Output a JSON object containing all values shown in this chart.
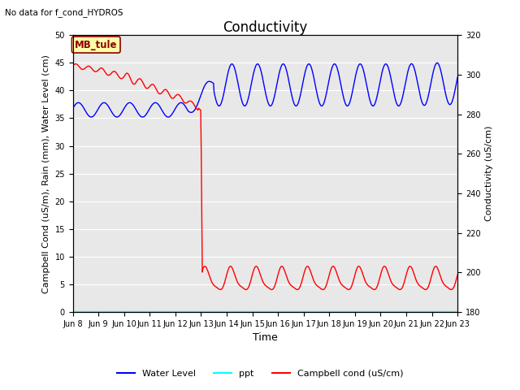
{
  "title": "Conductivity",
  "top_left_text": "No data for f_cond_HYDROS",
  "ylabel_left": "Campbell Cond (uS/m), Rain (mm), Water Level (cm)",
  "ylabel_right": "Conductivity (uS/cm)",
  "xlabel": "Time",
  "ylim_left": [
    0,
    50
  ],
  "ylim_right": [
    180,
    320
  ],
  "annotation_box": "MB_tule",
  "bg_color": "#e8e8e8",
  "x_ticks_labels": [
    "Jun 8",
    "Jun 9",
    "Jun 10",
    "Jun 11",
    "Jun 12",
    "Jun 13",
    "Jun 14",
    "Jun 15",
    "Jun 16",
    "Jun 17",
    "Jun 18",
    "Jun 19",
    "Jun 20",
    "Jun 21",
    "Jun 22",
    "Jun 23"
  ],
  "yticks_left": [
    0,
    5,
    10,
    15,
    20,
    25,
    30,
    35,
    40,
    45,
    50
  ],
  "yticks_right": [
    180,
    200,
    220,
    240,
    260,
    280,
    300,
    320
  ],
  "legend_labels": [
    "Water Level",
    "ppt",
    "Campbell cond (uS/cm)"
  ],
  "legend_colors": [
    "blue",
    "cyan",
    "red"
  ],
  "title_fontsize": 12,
  "axis_label_fontsize": 8,
  "tick_fontsize": 7
}
